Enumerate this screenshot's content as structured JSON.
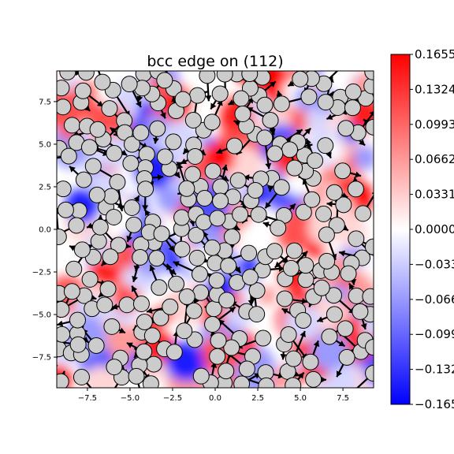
{
  "chart_data": {
    "type": "heatmap",
    "title": "bcc edge on (112)",
    "xlim": [
      -9.3,
      9.3
    ],
    "ylim": [
      -9.3,
      9.3
    ],
    "xticks": [
      -7.5,
      -5.0,
      -2.5,
      0.0,
      2.5,
      5.0,
      7.5
    ],
    "yticks": [
      -7.5,
      -5.0,
      -2.5,
      0.0,
      2.5,
      5.0,
      7.5
    ],
    "xtick_labels": [
      "−7.5",
      "−5.0",
      "−2.5",
      "0.0",
      "2.5",
      "5.0",
      "7.5"
    ],
    "ytick_labels": [
      "−7.5",
      "−5.0",
      "−2.5",
      "0.0",
      "2.5",
      "5.0",
      "7.5"
    ],
    "colorbar": {
      "colormap": "bwr",
      "range": [
        -0.1655,
        0.1655
      ],
      "tick_values": [
        0.1655,
        0.1324,
        0.0993,
        0.0662,
        0.0331,
        0.0,
        -0.0331,
        -0.0662,
        -0.0993,
        -0.1324,
        -0.1655
      ],
      "tick_labels": [
        "0.1655",
        "0.1324",
        "0.0993",
        "0.0662",
        "0.0331",
        "0.0000",
        "−0.0331",
        "−0.0662",
        "−0.0993",
        "−0.1324",
        "−0.1655"
      ]
    },
    "atoms": {
      "marker": "circle",
      "face_color": "#cccccc",
      "edge_color": "#000000",
      "arrow_color": "#000000"
    },
    "grid": false
  }
}
